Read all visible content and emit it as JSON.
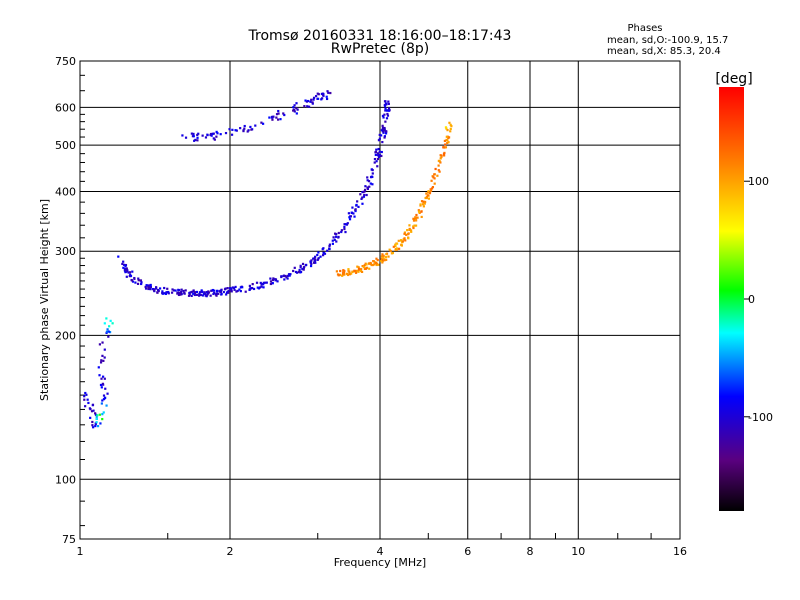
{
  "chart_data": {
    "type": "scatter",
    "title": "Tromsø 20160331 18:16:00–18:17:43",
    "subtitle": "RwPretec (8p)",
    "xlabel": "Frequency [MHz]",
    "ylabel": "Stationary phase Virtual Height [km]",
    "x_scale": "log",
    "y_scale": "log",
    "xlim": [
      1,
      16
    ],
    "ylim": [
      75,
      750
    ],
    "x_ticks": [
      1,
      2,
      4,
      6,
      8,
      10,
      16
    ],
    "y_ticks": [
      75,
      100,
      200,
      300,
      400,
      500,
      600,
      750
    ],
    "grid": true,
    "phases_box": {
      "title": "Phases",
      "line1": "mean, sd,O:-100.9, 15.7",
      "line2": "mean, sd,X:  85.3, 20.4"
    },
    "colorbar": {
      "label": "[deg]",
      "range": [
        -180,
        180
      ],
      "ticks": [
        100,
        0,
        -100
      ],
      "tick_labels": [
        "100",
        "0",
        "-100"
      ]
    },
    "o_trace": [
      [
        1.2,
        290,
        -100
      ],
      [
        1.25,
        270,
        -100
      ],
      [
        1.32,
        258,
        -105
      ],
      [
        1.4,
        250,
        -100
      ],
      [
        1.5,
        247,
        -100
      ],
      [
        1.6,
        246,
        -100
      ],
      [
        1.7,
        245,
        -100
      ],
      [
        1.8,
        245,
        -105
      ],
      [
        1.9,
        246,
        -100
      ],
      [
        2.0,
        248,
        -100
      ],
      [
        2.2,
        252,
        -100
      ],
      [
        2.4,
        258,
        -100
      ],
      [
        2.6,
        266,
        -100
      ],
      [
        2.8,
        277,
        -100
      ],
      [
        3.0,
        292,
        -100
      ],
      [
        3.2,
        312,
        -100
      ],
      [
        3.4,
        338,
        -100
      ],
      [
        3.6,
        372,
        -100
      ],
      [
        3.8,
        418,
        -100
      ],
      [
        3.95,
        470,
        -100
      ],
      [
        4.05,
        530,
        -100
      ],
      [
        4.12,
        580,
        -100
      ],
      [
        4.15,
        620,
        -100
      ]
    ],
    "x_trace": [
      [
        3.3,
        270,
        110
      ],
      [
        3.4,
        271,
        110
      ],
      [
        3.6,
        274,
        110
      ],
      [
        3.8,
        280,
        105
      ],
      [
        4.0,
        288,
        110
      ],
      [
        4.2,
        298,
        110
      ],
      [
        4.4,
        312,
        105
      ],
      [
        4.6,
        332,
        110
      ],
      [
        4.8,
        360,
        110
      ],
      [
        5.0,
        395,
        110
      ],
      [
        5.2,
        440,
        120
      ],
      [
        5.4,
        500,
        110
      ],
      [
        5.5,
        550,
        90
      ]
    ],
    "multi_hop_o": [
      [
        1.6,
        520,
        -100
      ],
      [
        1.8,
        520,
        -100
      ],
      [
        2.0,
        530,
        -100
      ],
      [
        2.2,
        545,
        -100
      ],
      [
        2.5,
        575,
        -100
      ],
      [
        2.8,
        605,
        -100
      ],
      [
        3.0,
        630,
        -100
      ],
      [
        3.2,
        640,
        -100
      ]
    ],
    "low_f_trace": [
      [
        1.02,
        150,
        -100
      ],
      [
        1.05,
        140,
        -100
      ],
      [
        1.08,
        130,
        -100
      ],
      [
        1.1,
        135,
        0
      ],
      [
        1.12,
        150,
        -100
      ],
      [
        1.1,
        170,
        -100
      ],
      [
        1.12,
        200,
        -100
      ],
      [
        1.15,
        215,
        0
      ]
    ]
  }
}
